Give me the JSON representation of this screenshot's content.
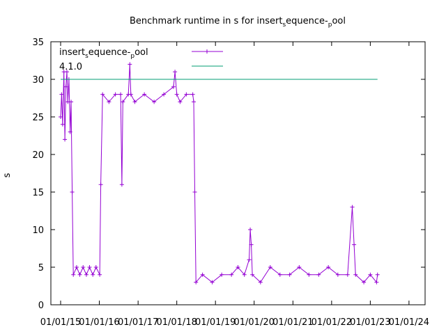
{
  "chart_data": {
    "type": "line",
    "title_parts": [
      "Benchmark runtime in s for insert",
      "s",
      "equence-",
      "p",
      "ool"
    ],
    "ylabel": "s",
    "xlabel": "",
    "ylim": [
      0,
      35
    ],
    "yticks": [
      0,
      5,
      10,
      15,
      20,
      25,
      30,
      35
    ],
    "xticks": [
      "01/01/15",
      "01/01/16",
      "01/01/17",
      "01/01/18",
      "01/01/19",
      "01/01/20",
      "01/01/21",
      "01/01/22",
      "01/01/23",
      "01/01/24"
    ],
    "xlim": [
      "2014-10-01",
      "2024-06-01"
    ],
    "grid": false,
    "legend_position": "top-left",
    "series": [
      {
        "name_parts": [
          "insert",
          "s",
          "equence-",
          "p",
          "ool"
        ],
        "color": "#9400d3",
        "marker": "plus",
        "points": [
          [
            "2015-01-01",
            25
          ],
          [
            "2015-01-10",
            28
          ],
          [
            "2015-01-20",
            24
          ],
          [
            "2015-02-01",
            31
          ],
          [
            "2015-02-10",
            22
          ],
          [
            "2015-02-20",
            29
          ],
          [
            "2015-03-01",
            31
          ],
          [
            "2015-03-10",
            27
          ],
          [
            "2015-03-20",
            30
          ],
          [
            "2015-04-01",
            23
          ],
          [
            "2015-04-10",
            27
          ],
          [
            "2015-04-20",
            15
          ],
          [
            "2015-05-01",
            4
          ],
          [
            "2015-06-01",
            5
          ],
          [
            "2015-07-01",
            4
          ],
          [
            "2015-08-01",
            5
          ],
          [
            "2015-09-01",
            4
          ],
          [
            "2015-10-01",
            5
          ],
          [
            "2015-11-01",
            4
          ],
          [
            "2015-12-01",
            5
          ],
          [
            "2016-01-05",
            4
          ],
          [
            "2016-01-15",
            16
          ],
          [
            "2016-02-01",
            28
          ],
          [
            "2016-04-01",
            27
          ],
          [
            "2016-06-01",
            28
          ],
          [
            "2016-07-20",
            28
          ],
          [
            "2016-08-01",
            16
          ],
          [
            "2016-08-10",
            27
          ],
          [
            "2016-10-01",
            28
          ],
          [
            "2016-10-15",
            32
          ],
          [
            "2016-10-25",
            28
          ],
          [
            "2016-12-01",
            27
          ],
          [
            "2017-03-01",
            28
          ],
          [
            "2017-06-01",
            27
          ],
          [
            "2017-09-01",
            28
          ],
          [
            "2017-12-01",
            29
          ],
          [
            "2017-12-15",
            31
          ],
          [
            "2018-01-01",
            28
          ],
          [
            "2018-02-01",
            27
          ],
          [
            "2018-04-01",
            28
          ],
          [
            "2018-06-01",
            28
          ],
          [
            "2018-06-10",
            27
          ],
          [
            "2018-06-20",
            15
          ],
          [
            "2018-07-01",
            3
          ],
          [
            "2018-09-01",
            4
          ],
          [
            "2018-12-01",
            3
          ],
          [
            "2019-03-01",
            4
          ],
          [
            "2019-06-01",
            4
          ],
          [
            "2019-08-01",
            5
          ],
          [
            "2019-10-01",
            4
          ],
          [
            "2019-11-15",
            6
          ],
          [
            "2019-11-25",
            10
          ],
          [
            "2019-12-05",
            8
          ],
          [
            "2019-12-15",
            4
          ],
          [
            "2020-03-01",
            3
          ],
          [
            "2020-06-01",
            5
          ],
          [
            "2020-09-01",
            4
          ],
          [
            "2020-12-01",
            4
          ],
          [
            "2021-03-01",
            5
          ],
          [
            "2021-06-01",
            4
          ],
          [
            "2021-09-01",
            4
          ],
          [
            "2021-12-01",
            5
          ],
          [
            "2022-03-01",
            4
          ],
          [
            "2022-06-01",
            4
          ],
          [
            "2022-07-15",
            13
          ],
          [
            "2022-08-01",
            8
          ],
          [
            "2022-08-15",
            4
          ],
          [
            "2022-11-01",
            3
          ],
          [
            "2023-01-01",
            4
          ],
          [
            "2023-03-01",
            3
          ],
          [
            "2023-03-10",
            4
          ]
        ]
      },
      {
        "name": "4.1.0",
        "color": "#009e73",
        "marker": "none",
        "points": [
          [
            "2015-01-01",
            30
          ],
          [
            "2023-03-10",
            30
          ]
        ]
      }
    ]
  }
}
